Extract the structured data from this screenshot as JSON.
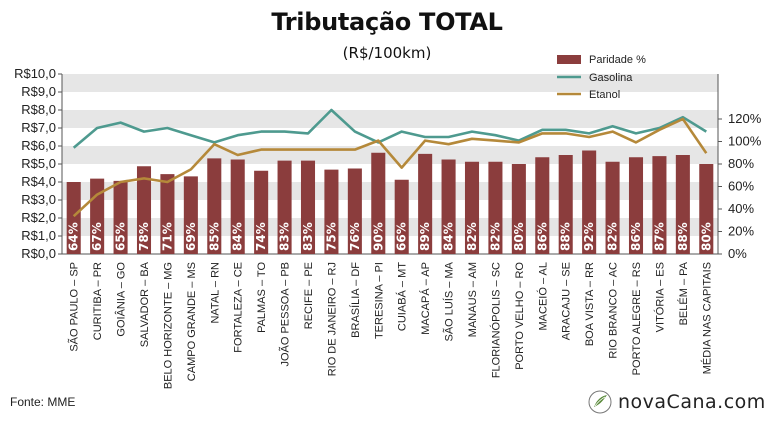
{
  "header": {
    "title": "Tributação TOTAL",
    "subtitle": "(R$/100km)"
  },
  "footer": {
    "source": "Fonte: MME",
    "brand": "novaCana.com"
  },
  "colors": {
    "bar": "#8B3D3D",
    "gasolina": "#4E9A8F",
    "etanol": "#B5893A",
    "band": "#E6E6E6"
  },
  "chart_data": {
    "type": "bar",
    "categories": [
      "SÃO PAULO – SP",
      "CURITIBA – PR",
      "GOIÂNIA – GO",
      "SALVADOR – BA",
      "BELO HORIZONTE – MG",
      "CAMPO GRANDE – MS",
      "NATAL – RN",
      "FORTALEZA – CE",
      "PALMAS – TO",
      "JOÃO PESSOA – PB",
      "RECIFE – PE",
      "RIO DE JANEIRO – RJ",
      "BRASÍLIA – DF",
      "TERESINA – PI",
      "CUIABÁ – MT",
      "MACAPÁ – AP",
      "SÃO LUÍS – MA",
      "MANAUS – AM",
      "FLORIANÓPOLIS – SC",
      "PORTO VELHO – RO",
      "MACEIÓ – AL",
      "ARACAJU – SE",
      "BOA VISTA – RR",
      "RIO BRANCO – AC",
      "PORTO ALEGRE – RS",
      "VITÓRIA – ES",
      "BELÉM – PA",
      "MÉDIA NAS CAPITAIS"
    ],
    "series": [
      {
        "name": "Paridade %",
        "axis": "right",
        "values": [
          64,
          67,
          65,
          78,
          71,
          69,
          85,
          84,
          74,
          83,
          83,
          75,
          76,
          90,
          66,
          89,
          84,
          82,
          82,
          80,
          86,
          88,
          92,
          82,
          86,
          87,
          88,
          80
        ],
        "labels": [
          "64%",
          "67%",
          "65%",
          "78%",
          "71%",
          "69%",
          "85%",
          "84%",
          "74%",
          "83%",
          "83%",
          "75%",
          "76%",
          "90%",
          "66%",
          "89%",
          "84%",
          "82%",
          "82%",
          "80%",
          "86%",
          "88%",
          "92%",
          "82%",
          "86%",
          "87%",
          "88%",
          "80%"
        ]
      },
      {
        "name": "Gasolina",
        "axis": "left",
        "values": [
          5.9,
          7.0,
          7.3,
          6.8,
          7.0,
          6.6,
          6.2,
          6.6,
          6.8,
          6.8,
          6.7,
          8.0,
          6.8,
          6.2,
          6.8,
          6.5,
          6.5,
          6.8,
          6.6,
          6.3,
          6.9,
          6.9,
          6.7,
          7.1,
          6.7,
          7.0,
          7.6,
          6.8
        ]
      },
      {
        "name": "Etanol",
        "axis": "left",
        "values": [
          2.1,
          3.3,
          4.0,
          4.2,
          4.0,
          4.7,
          6.1,
          5.5,
          5.8,
          5.8,
          5.8,
          5.8,
          5.8,
          6.3,
          4.8,
          6.3,
          6.1,
          6.4,
          6.3,
          6.2,
          6.7,
          6.7,
          6.5,
          6.8,
          6.2,
          6.9,
          7.5,
          5.6
        ]
      }
    ],
    "y_left": {
      "min": 0,
      "max": 10,
      "ticks": [
        "R$0,0",
        "R$1,0",
        "R$2,0",
        "R$3,0",
        "R$4,0",
        "R$5,0",
        "R$6,0",
        "R$7,0",
        "R$8,0",
        "R$9,0",
        "R$10,0"
      ]
    },
    "y_right": {
      "min": 0,
      "max": 160,
      "ticks": [
        "0%",
        "20%",
        "40%",
        "60%",
        "80%",
        "100%",
        "120%"
      ]
    },
    "legend_position": "top-right",
    "grid": "alternating horizontal bands"
  }
}
